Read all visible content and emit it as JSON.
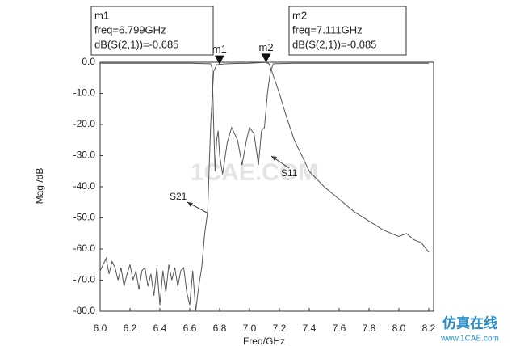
{
  "chart_data": {
    "type": "line",
    "xlabel": "Freq/GHz",
    "ylabel": "Mag /dB",
    "xlim": [
      6.0,
      8.2
    ],
    "ylim": [
      -80,
      0
    ],
    "xticks": [
      {
        "value": 6.0,
        "label": "6.0"
      },
      6.2,
      6.4,
      6.6,
      6.8,
      {
        "value": 7.0,
        "label": "7.0"
      },
      7.2,
      7.4,
      7.6,
      7.8,
      {
        "value": 8.0,
        "label": "8.0"
      },
      8.2
    ],
    "yticks": [
      {
        "value": 0,
        "label": "0.0"
      },
      {
        "value": -10,
        "label": "-10.0"
      },
      {
        "value": -20,
        "label": "-20.0"
      },
      {
        "value": -30,
        "label": "-30.0"
      },
      {
        "value": -40,
        "label": "-40.0"
      },
      {
        "value": -50,
        "label": "-50.0"
      },
      {
        "value": -60,
        "label": "-60.0"
      },
      {
        "value": -70,
        "label": "-70.0"
      },
      {
        "value": -80,
        "label": "-80.0"
      }
    ],
    "series": [
      {
        "name": "S21",
        "color": "#555555",
        "x": [
          6.0,
          6.02,
          6.04,
          6.06,
          6.08,
          6.1,
          6.12,
          6.14,
          6.16,
          6.18,
          6.2,
          6.22,
          6.24,
          6.26,
          6.28,
          6.3,
          6.32,
          6.34,
          6.36,
          6.38,
          6.4,
          6.42,
          6.44,
          6.46,
          6.48,
          6.5,
          6.52,
          6.54,
          6.56,
          6.58,
          6.6,
          6.62,
          6.64,
          6.66,
          6.68,
          6.7,
          6.72,
          6.74,
          6.76,
          6.78,
          6.799,
          6.85,
          6.9,
          7.0,
          7.05,
          7.111,
          7.13,
          7.15,
          7.2,
          7.25,
          7.3,
          7.35,
          7.4,
          7.5,
          7.6,
          7.7,
          7.8,
          7.9,
          8.0,
          8.05,
          8.1,
          8.15,
          8.2
        ],
        "values": [
          -67,
          -65,
          -63,
          -68,
          -64,
          -66,
          -70,
          -66,
          -72,
          -68,
          -65,
          -70,
          -67,
          -73,
          -67,
          -66,
          -72,
          -68,
          -75,
          -66,
          -78,
          -67,
          -74,
          -65,
          -70,
          -66,
          -72,
          -67,
          -66,
          -74,
          -78,
          -67,
          -80,
          -72,
          -66,
          -55,
          -48,
          -20,
          -3,
          -0.8,
          -0.685,
          -0.5,
          -0.4,
          -0.3,
          -0.2,
          -0.085,
          -0.5,
          -3,
          -10,
          -18,
          -25,
          -30,
          -35,
          -40,
          -44,
          -48,
          -51,
          -54,
          -56,
          -55,
          -57,
          -58,
          -61
        ]
      },
      {
        "name": "S11",
        "color": "#555555",
        "x": [
          6.0,
          6.3,
          6.6,
          6.74,
          6.75,
          6.76,
          6.77,
          6.78,
          6.79,
          6.8,
          6.82,
          6.85,
          6.88,
          6.92,
          6.95,
          6.98,
          7.0,
          7.03,
          7.06,
          7.08,
          7.1,
          7.12,
          7.14,
          7.16,
          7.3,
          7.6,
          8.0,
          8.2
        ],
        "values": [
          -0.3,
          -0.3,
          -0.3,
          -0.5,
          -2,
          -20,
          -35,
          -25,
          -22,
          -30,
          -36,
          -26,
          -21,
          -25,
          -33,
          -25,
          -21,
          -23,
          -33,
          -22,
          -21,
          -10,
          -3,
          -0.5,
          -0.3,
          -0.3,
          -0.3,
          -0.3
        ]
      }
    ],
    "markers": [
      {
        "name": "m1",
        "x": 6.799,
        "y": -0.685,
        "label_lines": [
          "m1",
          "freq=6.799GHz",
          "dB(S(2,1))=-0.685"
        ]
      },
      {
        "name": "m2",
        "x": 7.111,
        "y": -0.085,
        "label_lines": [
          "m2",
          "freq=7.111GHz",
          "dB(S(2,1))=-0.085"
        ]
      }
    ],
    "watermark": "1CAE.COM",
    "logo": "仿真在线",
    "logo_url": "www.1CAE.com"
  }
}
